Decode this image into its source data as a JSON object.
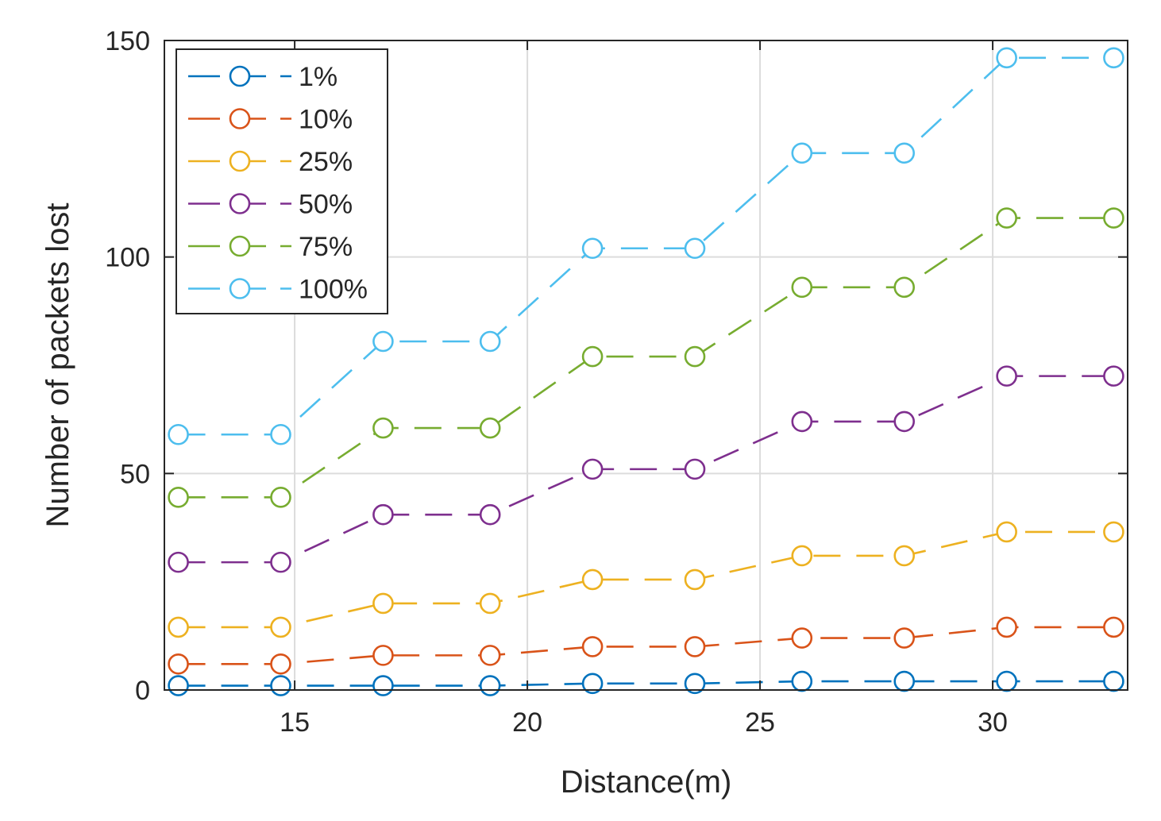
{
  "chart_data": {
    "type": "line",
    "title": "",
    "xlabel": "Distance(m)",
    "ylabel": "Number of packets lost",
    "xlim": [
      12.2,
      32.9
    ],
    "ylim": [
      0,
      150
    ],
    "xticks": [
      15,
      20,
      25,
      30
    ],
    "yticks": [
      0,
      50,
      100,
      150
    ],
    "grid": true,
    "legend_position": "top-left",
    "x": [
      12.5,
      14.7,
      16.9,
      19.2,
      21.4,
      23.6,
      25.9,
      28.1,
      30.3,
      32.6
    ],
    "series": [
      {
        "name": "1%",
        "color": "#0072BD",
        "values": [
          1,
          1,
          1,
          1,
          1.5,
          1.5,
          2,
          2,
          2,
          2
        ]
      },
      {
        "name": "10%",
        "color": "#D95319",
        "values": [
          6,
          6,
          8,
          8,
          10,
          10,
          12,
          12,
          14.5,
          14.5
        ]
      },
      {
        "name": "25%",
        "color": "#EDB120",
        "values": [
          14.5,
          14.5,
          20,
          20,
          25.5,
          25.5,
          31,
          31,
          36.5,
          36.5
        ]
      },
      {
        "name": "50%",
        "color": "#7E2F8E",
        "values": [
          29.5,
          29.5,
          40.5,
          40.5,
          51,
          51,
          62,
          62,
          72.5,
          72.5
        ]
      },
      {
        "name": "75%",
        "color": "#77AC30",
        "values": [
          44.5,
          44.5,
          60.5,
          60.5,
          77,
          77,
          93,
          93,
          109,
          109
        ]
      },
      {
        "name": "100%",
        "color": "#4DBEEE",
        "values": [
          59,
          59,
          80.5,
          80.5,
          102,
          102,
          124,
          124,
          146,
          146
        ]
      }
    ]
  }
}
